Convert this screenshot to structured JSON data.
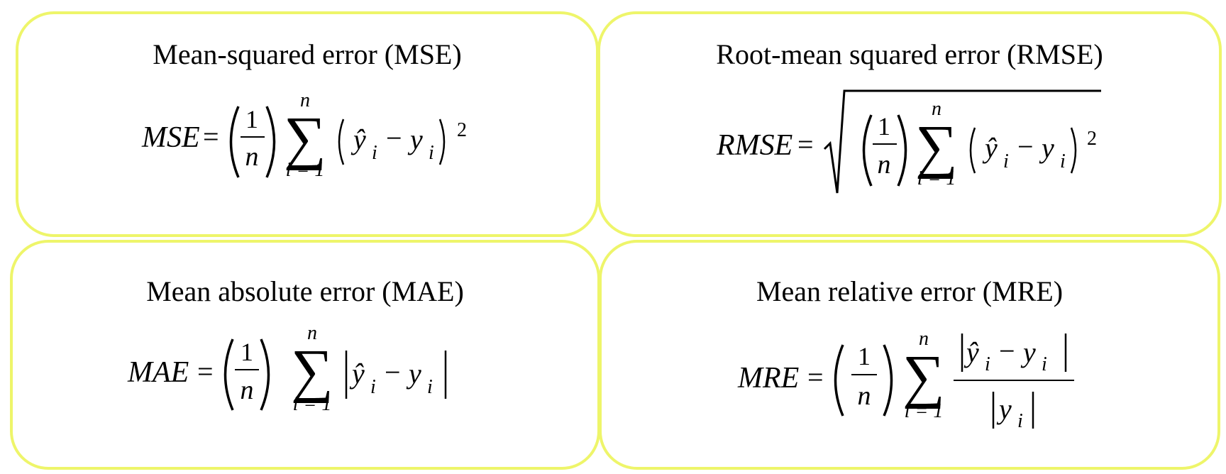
{
  "colors": {
    "card_border": "#EEF56A",
    "background": "#FFFFFF",
    "text": "#000000"
  },
  "cards": [
    {
      "id": "mse",
      "title": "Mean-squared error (MSE)",
      "lhs": "MSE",
      "equals": "=",
      "frac_numerator": "1",
      "frac_denominator": "n",
      "sum_upper": "n",
      "sum_lower": "i = 1",
      "exponent": "2"
    },
    {
      "id": "rmse",
      "title": "Root-mean squared error (RMSE)",
      "lhs": "RMSE",
      "equals": "=",
      "frac_numerator": "1",
      "frac_denominator": "n",
      "sum_upper": "n",
      "sum_lower": "i = 1",
      "exponent": "2"
    },
    {
      "id": "mae",
      "title": "Mean absolute error (MAE)",
      "lhs": "MAE",
      "equals": "=",
      "frac_numerator": "1",
      "frac_denominator": "n",
      "sum_upper": "n",
      "sum_lower": "i = 1"
    },
    {
      "id": "mre",
      "title": "Mean relative error (MRE)",
      "lhs": "MRE",
      "equals": "=",
      "frac_numerator": "1",
      "frac_denominator": "n",
      "sum_upper": "n",
      "sum_lower": "i = 1"
    }
  ],
  "symbols": {
    "sum": "∑",
    "y_hat": "ŷ",
    "y": "y",
    "index": "i",
    "minus": "−"
  }
}
